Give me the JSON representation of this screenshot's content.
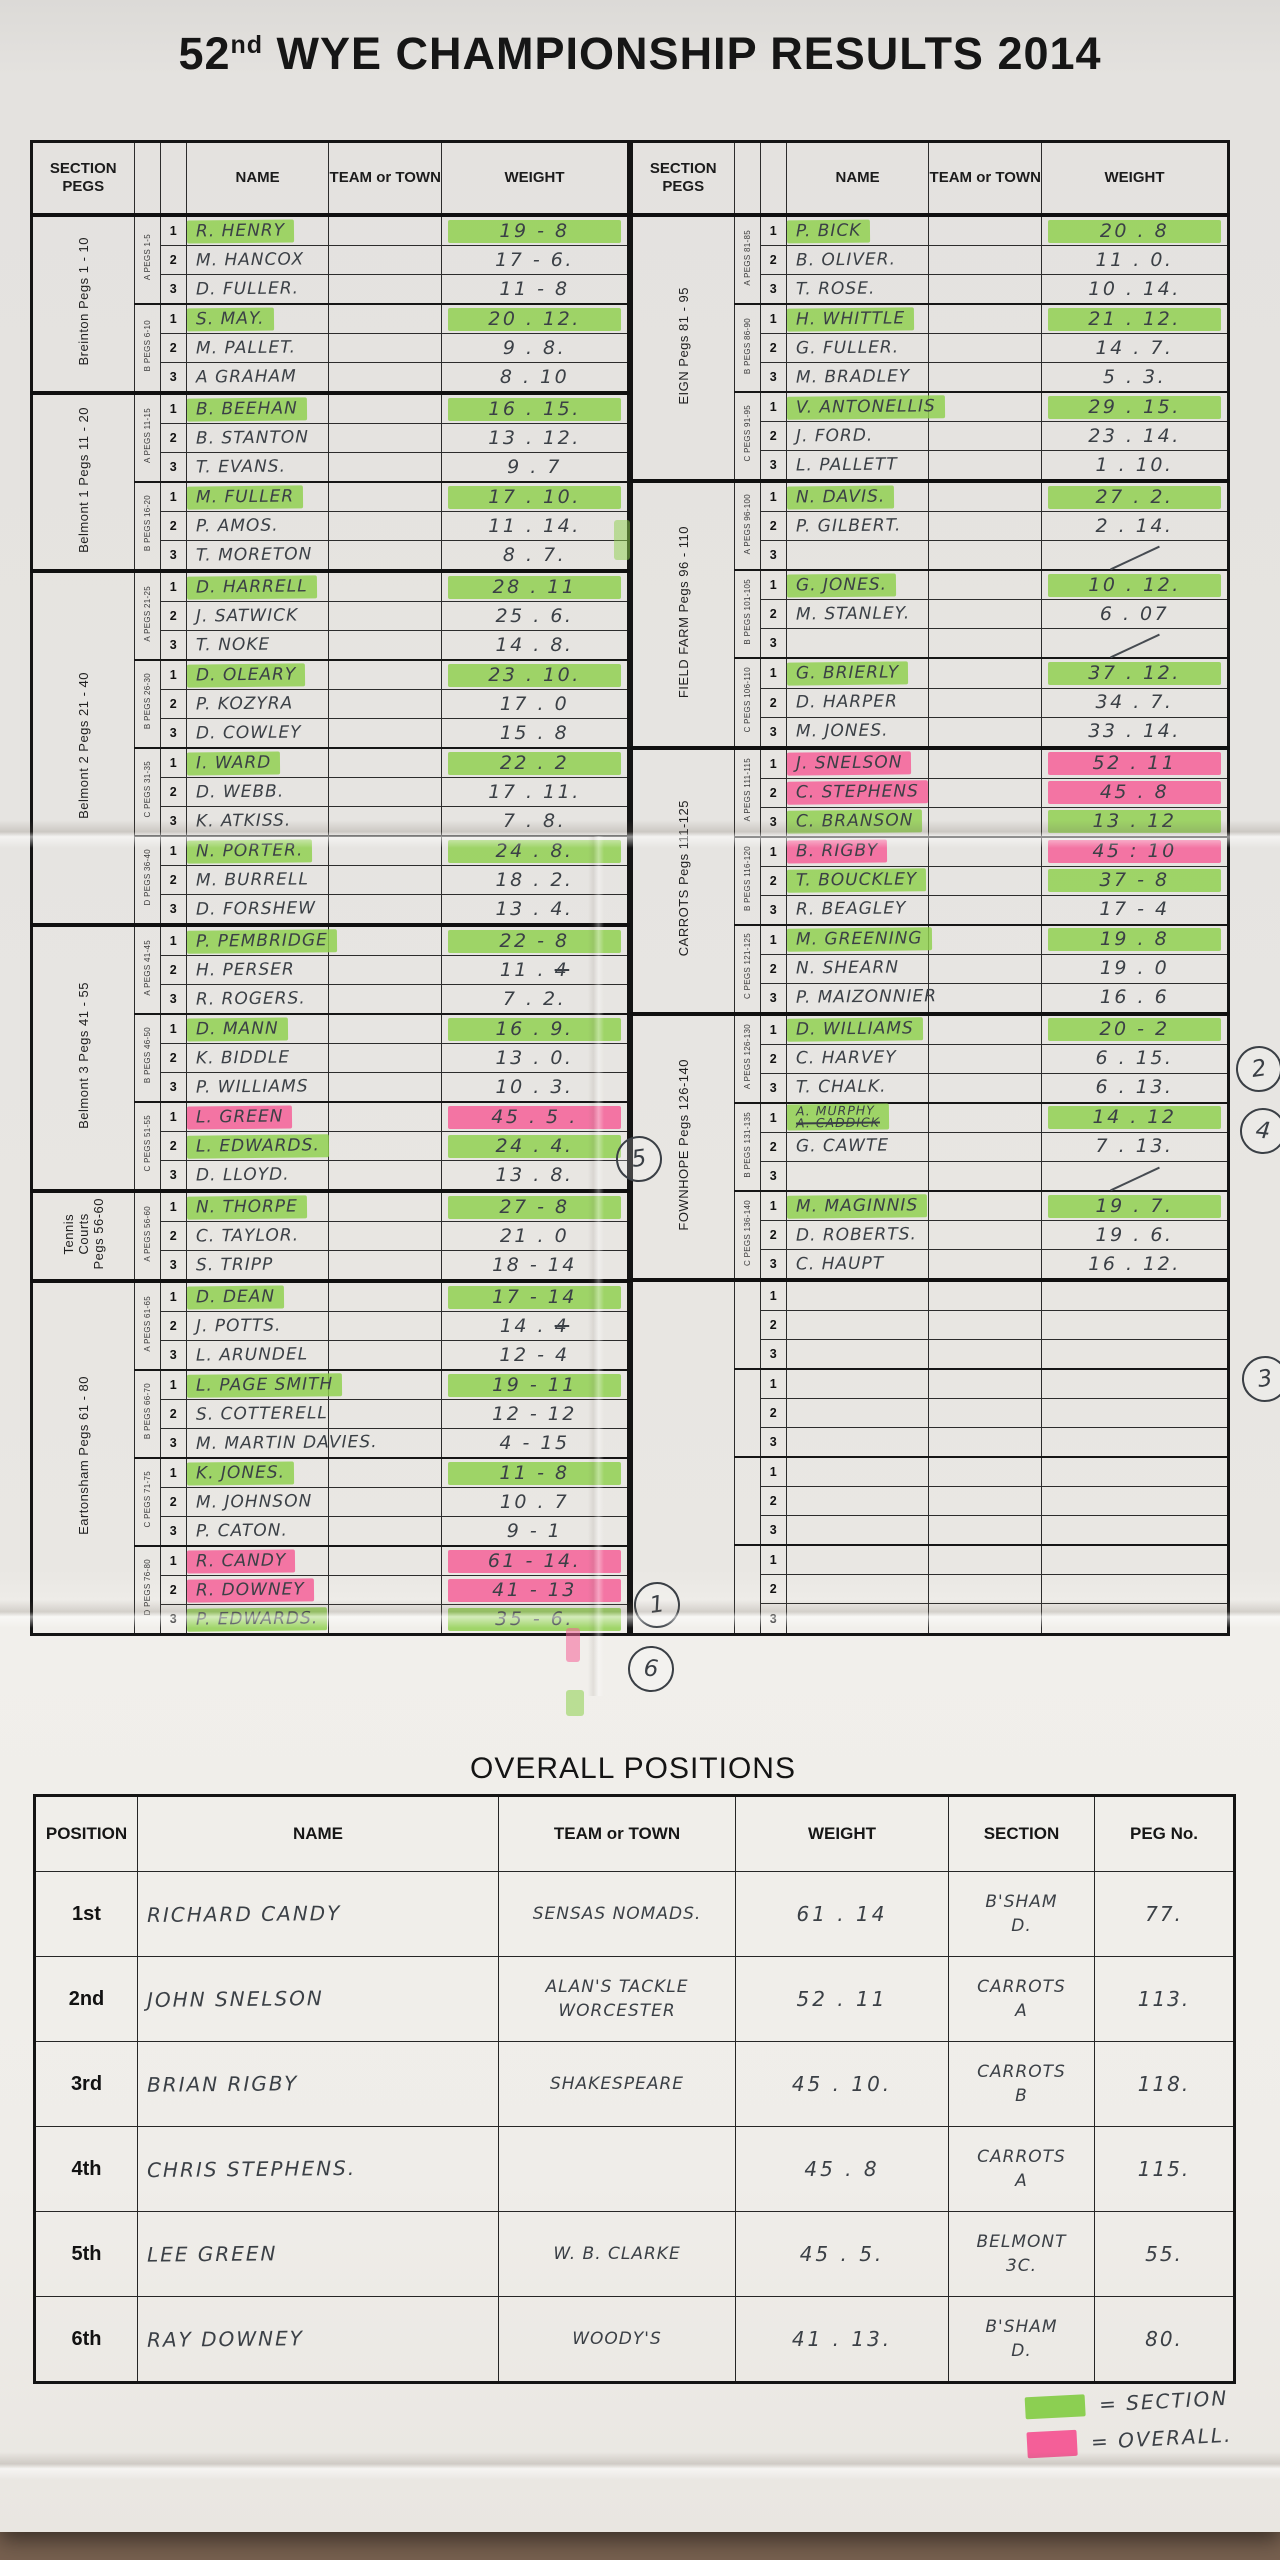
{
  "title": {
    "num": "52",
    "ord": "nd",
    "rest": " WYE CHAMPIONSHIP RESULTS 2014"
  },
  "columns": {
    "section": "SECTION PEGS",
    "name": "NAME",
    "team": "TEAM or TOWN",
    "weight": "WEIGHT"
  },
  "left_table": {
    "sections": [
      {
        "label": [
          "Breinton Pegs 1 - 10"
        ],
        "groups": [
          {
            "peg": "A PEGS 1-5",
            "rows": [
              {
                "n": "1",
                "name": "R. HENRY",
                "w": "19 - 8",
                "hl": "g"
              },
              {
                "n": "2",
                "name": "M. HANCOX",
                "w": "17 - 6."
              },
              {
                "n": "3",
                "name": "D. FULLER.",
                "w": "11 - 8"
              }
            ]
          },
          {
            "peg": "B PEGS 6-10",
            "rows": [
              {
                "n": "1",
                "name": "S. MAY.",
                "w": "20 . 12.",
                "hl": "g"
              },
              {
                "n": "2",
                "name": "M. PALLET.",
                "w": "9 . 8."
              },
              {
                "n": "3",
                "name": "A GRAHAM",
                "w": "8 . 10"
              }
            ]
          }
        ]
      },
      {
        "label": [
          "Belmont 1 Pegs 11 - 20"
        ],
        "groups": [
          {
            "peg": "A PEGS 11-15",
            "rows": [
              {
                "n": "1",
                "name": "B. BEEHAN",
                "w": "16 . 15.",
                "hl": "g"
              },
              {
                "n": "2",
                "name": "B. STANTON",
                "w": "13 . 12."
              },
              {
                "n": "3",
                "name": "T. EVANS.",
                "w": "9 . 7"
              }
            ]
          },
          {
            "peg": "B PEGS 16-20",
            "rows": [
              {
                "n": "1",
                "name": "M. FULLER",
                "w": "17 . 10.",
                "hl": "g"
              },
              {
                "n": "2",
                "name": "P. AMOS.",
                "w": "11 . 14."
              },
              {
                "n": "3",
                "name": "T. MORETON",
                "w": "8 . 7."
              }
            ]
          }
        ]
      },
      {
        "label": [
          "Belmont 2 Pegs 21 - 40"
        ],
        "groups": [
          {
            "peg": "A PEGS 21-25",
            "rows": [
              {
                "n": "1",
                "name": "D. HARRELL",
                "w": "28 . 11",
                "hl": "g"
              },
              {
                "n": "2",
                "name": "J. SATWICK",
                "w": "25 . 6."
              },
              {
                "n": "3",
                "name": "T. NOKE",
                "w": "14 . 8."
              }
            ]
          },
          {
            "peg": "B PEGS 26-30",
            "rows": [
              {
                "n": "1",
                "name": "D. OLEARY",
                "w": "23 . 10.",
                "hl": "g"
              },
              {
                "n": "2",
                "name": "P. KOZYRA",
                "w": "17 . 0"
              },
              {
                "n": "3",
                "name": "D. COWLEY",
                "w": "15 . 8"
              }
            ]
          },
          {
            "peg": "C PEGS 31-35",
            "rows": [
              {
                "n": "1",
                "name": "I. WARD",
                "w": "22 . 2",
                "hl": "g"
              },
              {
                "n": "2",
                "name": "D. WEBB.",
                "w": "17 . 11."
              },
              {
                "n": "3",
                "name": "K. ATKISS.",
                "w": "7 . 8."
              }
            ]
          },
          {
            "peg": "D PEGS 36-40",
            "rows": [
              {
                "n": "1",
                "name": "N. PORTER.",
                "w": "24 . 8.",
                "hl": "g"
              },
              {
                "n": "2",
                "name": "M. BURRELL",
                "w": "18 . 2."
              },
              {
                "n": "3",
                "name": "D. FORSHEW",
                "w": "13 . 4."
              }
            ]
          }
        ]
      },
      {
        "label": [
          "Belmont 3 Pegs 41 - 55"
        ],
        "groups": [
          {
            "peg": "A PEGS 41-45",
            "rows": [
              {
                "n": "1",
                "name": "P. PEMBRIDGE",
                "w": "22 - 8",
                "hl": "g"
              },
              {
                "n": "2",
                "name": "H. PERSER",
                "w": "11 . ",
                "w_struck": "4"
              },
              {
                "n": "3",
                "name": "R. ROGERS.",
                "w": "7 . 2."
              }
            ]
          },
          {
            "peg": "B PEGS 46-50",
            "rows": [
              {
                "n": "1",
                "name": "D. MANN",
                "w": "16 . 9.",
                "hl": "g"
              },
              {
                "n": "2",
                "name": "K. BIDDLE",
                "w": "13 . 0."
              },
              {
                "n": "3",
                "name": "P. WILLIAMS",
                "w": "10 . 3."
              }
            ]
          },
          {
            "peg": "C PEGS 51-55",
            "rows": [
              {
                "n": "1",
                "name": "L. GREEN",
                "w": "45 . 5 .",
                "hl": "p"
              },
              {
                "n": "2",
                "name": "L. EDWARDS.",
                "w": "24 . 4.",
                "hl": "g"
              },
              {
                "n": "3",
                "name": "D. LLOYD.",
                "w": "13 . 8."
              }
            ]
          }
        ]
      },
      {
        "label": [
          "Tennis",
          "Courts",
          "Pegs 56-60"
        ],
        "groups": [
          {
            "peg": "A PEGS 56-60",
            "rows": [
              {
                "n": "1",
                "name": "N. THORPE",
                "w": "27 - 8",
                "hl": "g"
              },
              {
                "n": "2",
                "name": "C. TAYLOR.",
                "w": "21 . 0"
              },
              {
                "n": "3",
                "name": "S. TRIPP",
                "w": "18 - 14"
              }
            ]
          }
        ]
      },
      {
        "label": [
          "Eartonsham Pegs 61 - 80"
        ],
        "groups": [
          {
            "peg": "A PEGS 61-65",
            "rows": [
              {
                "n": "1",
                "name": "D. DEAN",
                "w": "17 - 14",
                "hl": "g"
              },
              {
                "n": "2",
                "name": "J. POTTS.",
                "w": "14 . ",
                "w_struck": "4"
              },
              {
                "n": "3",
                "name": "L. ARUNDEL",
                "w": "12 - 4"
              }
            ]
          },
          {
            "peg": "B PEGS 66-70",
            "rows": [
              {
                "n": "1",
                "name": "L. PAGE SMITH",
                "w": "19 - 11",
                "hl": "g"
              },
              {
                "n": "2",
                "name": "S. COTTERELL",
                "w": "12 - 12"
              },
              {
                "n": "3",
                "name": "M. MARTIN DAVIES.",
                "w": "4 - 15"
              }
            ]
          },
          {
            "peg": "C PEGS 71-75",
            "rows": [
              {
                "n": "1",
                "name": "K. JONES.",
                "w": "11 - 8",
                "hl": "g"
              },
              {
                "n": "2",
                "name": "M. JOHNSON",
                "w": "10 . 7"
              },
              {
                "n": "3",
                "name": "P. CATON.",
                "w": "9 - 1"
              }
            ]
          },
          {
            "peg": "D PEGS 76-80",
            "rows": [
              {
                "n": "1",
                "name": "R. CANDY",
                "w": "61 - 14.",
                "hl": "p"
              },
              {
                "n": "2",
                "name": "R. DOWNEY",
                "w": "41 - 13",
                "hl": "p"
              },
              {
                "n": "3",
                "name": "P. EDWARDS.",
                "w": "35 - 6.",
                "hl": "g"
              }
            ]
          }
        ]
      }
    ]
  },
  "right_table": {
    "sections": [
      {
        "label": [
          "EIGN Pegs 81 - 95"
        ],
        "groups": [
          {
            "peg": "A PEGS 81-85",
            "rows": [
              {
                "n": "1",
                "name": "P. BICK",
                "w": "20 . 8",
                "hl": "g"
              },
              {
                "n": "2",
                "name": "B. OLIVER.",
                "w": "11 . 0."
              },
              {
                "n": "3",
                "name": "T. ROSE.",
                "w": "10 . 14."
              }
            ]
          },
          {
            "peg": "B PEGS 86-90",
            "rows": [
              {
                "n": "1",
                "name": "H. WHITTLE",
                "w": "21 . 12.",
                "hl": "g"
              },
              {
                "n": "2",
                "name": "G. FULLER.",
                "w": "14 . 7."
              },
              {
                "n": "3",
                "name": "M. BRADLEY",
                "w": "5 . 3."
              }
            ]
          },
          {
            "peg": "C PEGS 91-95",
            "rows": [
              {
                "n": "1",
                "name": "V. ANTONELLIS",
                "w": "29 . 15.",
                "hl": "g"
              },
              {
                "n": "2",
                "name": "J. FORD.",
                "w": "23 . 14."
              },
              {
                "n": "3",
                "name": "L. PALLETT",
                "w": "1 . 10."
              }
            ]
          }
        ]
      },
      {
        "label": [
          "FIELD FARM Pegs 96 - 110"
        ],
        "groups": [
          {
            "peg": "A PEGS 96-100",
            "rows": [
              {
                "n": "1",
                "name": "N. DAVIS.",
                "w": "27 . 2.",
                "hl": "g"
              },
              {
                "n": "2",
                "name": "P. GILBERT.",
                "w": "2 . 14."
              },
              {
                "n": "3",
                "name": "",
                "sl": true
              }
            ]
          },
          {
            "peg": "B PEGS 101-105",
            "rows": [
              {
                "n": "1",
                "name": "G. JONES.",
                "w": "10 . 12.",
                "hl": "g"
              },
              {
                "n": "2",
                "name": "M. STANLEY.",
                "w": "6 . 07"
              },
              {
                "n": "3",
                "name": "",
                "sl": true
              }
            ]
          },
          {
            "peg": "C PEGS 106-110",
            "rows": [
              {
                "n": "1",
                "name": "G. BRIERLY",
                "w": "37 . 12.",
                "hl": "g"
              },
              {
                "n": "2",
                "name": "D. HARPER",
                "w": "34 . 7."
              },
              {
                "n": "3",
                "name": "M. JONES.",
                "w": "33 . 14."
              }
            ]
          }
        ]
      },
      {
        "label": [
          "CARROTS Pegs 111-125"
        ],
        "groups": [
          {
            "peg": "A PEGS 111-115",
            "rows": [
              {
                "n": "1",
                "name": "J. SNELSON",
                "w": "52 . 11",
                "hl": "p"
              },
              {
                "n": "2",
                "name": "C. STEPHENS",
                "w": "45 . 8",
                "hl": "p"
              },
              {
                "n": "3",
                "name": "C. BRANSON",
                "w": "13 . 12",
                "hl": "g"
              }
            ]
          },
          {
            "peg": "B PEGS 116-120",
            "rows": [
              {
                "n": "1",
                "name": "B. RIGBY",
                "w": "45 : 10",
                "hl": "p"
              },
              {
                "n": "2",
                "name": "T. BOUCKLEY",
                "w": "37 - 8",
                "hl": "g"
              },
              {
                "n": "3",
                "name": "R. BEAGLEY",
                "w": "17 - 4"
              }
            ]
          },
          {
            "peg": "C PEGS 121-125",
            "rows": [
              {
                "n": "1",
                "name": "M. GREENING",
                "w": "19 . 8",
                "hl": "g"
              },
              {
                "n": "2",
                "name": "N. SHEARN",
                "w": "19 . 0"
              },
              {
                "n": "3",
                "name": "P. MAIZONNIER",
                "w": "16 . 6"
              }
            ]
          }
        ]
      },
      {
        "label": [
          "FOWNHOPE Pegs 126-140"
        ],
        "groups": [
          {
            "peg": "A PEGS 126-130",
            "rows": [
              {
                "n": "1",
                "name": "D. WILLIAMS",
                "w": "20 - 2",
                "hl": "g"
              },
              {
                "n": "2",
                "name": "C. HARVEY",
                "w": "6 . 15."
              },
              {
                "n": "3",
                "name": "T. CHALK.",
                "w": "6 . 13."
              }
            ]
          },
          {
            "peg": "B PEGS 131-135",
            "rows": [
              {
                "n": "1",
                "name": "A. MURPHY",
                "name_struck": "A. CADDICK",
                "w": "14 . 12",
                "hl": "g"
              },
              {
                "n": "2",
                "name": "G. CAWTE",
                "w": "7 . 13."
              },
              {
                "n": "3",
                "name": "",
                "sl": true
              }
            ]
          },
          {
            "peg": "C PEGS 136-140",
            "rows": [
              {
                "n": "1",
                "name": "M. MAGINNIS",
                "w": "19 . 7.",
                "hl": "g"
              },
              {
                "n": "2",
                "name": "D. ROBERTS.",
                "w": "19 . 6."
              },
              {
                "n": "3",
                "name": "C. HAUPT",
                "w": "16 . 12."
              }
            ]
          }
        ]
      },
      {
        "label": [
          ""
        ],
        "groups": [
          {
            "peg": "",
            "rows": [
              {
                "n": "1",
                "name": ""
              },
              {
                "n": "2",
                "name": ""
              },
              {
                "n": "3",
                "name": ""
              }
            ]
          },
          {
            "peg": "",
            "rows": [
              {
                "n": "1",
                "name": ""
              },
              {
                "n": "2",
                "name": ""
              },
              {
                "n": "3",
                "name": ""
              }
            ]
          },
          {
            "peg": "",
            "rows": [
              {
                "n": "1",
                "name": ""
              },
              {
                "n": "2",
                "name": ""
              },
              {
                "n": "3",
                "name": ""
              }
            ]
          },
          {
            "peg": "",
            "rows": [
              {
                "n": "1",
                "name": ""
              },
              {
                "n": "2",
                "name": ""
              },
              {
                "n": "3",
                "name": ""
              }
            ]
          }
        ]
      }
    ]
  },
  "overall": {
    "title": "OVERALL POSITIONS",
    "headers": [
      "POSITION",
      "NAME",
      "TEAM or TOWN",
      "WEIGHT",
      "SECTION",
      "PEG No."
    ],
    "rows": [
      {
        "pos": "1st",
        "name": "RICHARD CANDY",
        "team": [
          "SENSAS NOMADS."
        ],
        "w": "61 . 14",
        "section": [
          "B'SHAM",
          "D."
        ],
        "peg": "77."
      },
      {
        "pos": "2nd",
        "name": "JOHN SNELSON",
        "team": [
          "ALAN'S TACKLE",
          "WORCESTER"
        ],
        "w": "52 . 11",
        "section": [
          "CARROTS",
          "A"
        ],
        "peg": "113."
      },
      {
        "pos": "3rd",
        "name": "BRIAN RIGBY",
        "team": [
          "SHAKESPEARE"
        ],
        "w": "45 . 10.",
        "section": [
          "CARROTS",
          "B"
        ],
        "peg": "118."
      },
      {
        "pos": "4th",
        "name": "CHRIS STEPHENS.",
        "team": [],
        "w": "45 . 8",
        "section": [
          "CARROTS",
          "A"
        ],
        "peg": "115."
      },
      {
        "pos": "5th",
        "name": "LEE GREEN",
        "team": [
          "W. B. CLARKE"
        ],
        "w": "45 . 5.",
        "section": [
          "BELMONT",
          "3C."
        ],
        "peg": "55."
      },
      {
        "pos": "6th",
        "name": "RAY DOWNEY",
        "team": [
          "WOODY'S"
        ],
        "w": "41 . 13.",
        "section": [
          "B'SHAM",
          "D."
        ],
        "peg": "80."
      }
    ]
  },
  "circles": {
    "c1": "1",
    "c2": "2",
    "c3": "3",
    "c4": "4",
    "c5": "5",
    "c6": "6"
  },
  "legend": {
    "green": "= SECTION",
    "pink": "= OVERALL."
  },
  "colors": {
    "highlight_green": "#8ccf52",
    "highlight_pink": "#f45f98",
    "ink": "#3b4046"
  }
}
